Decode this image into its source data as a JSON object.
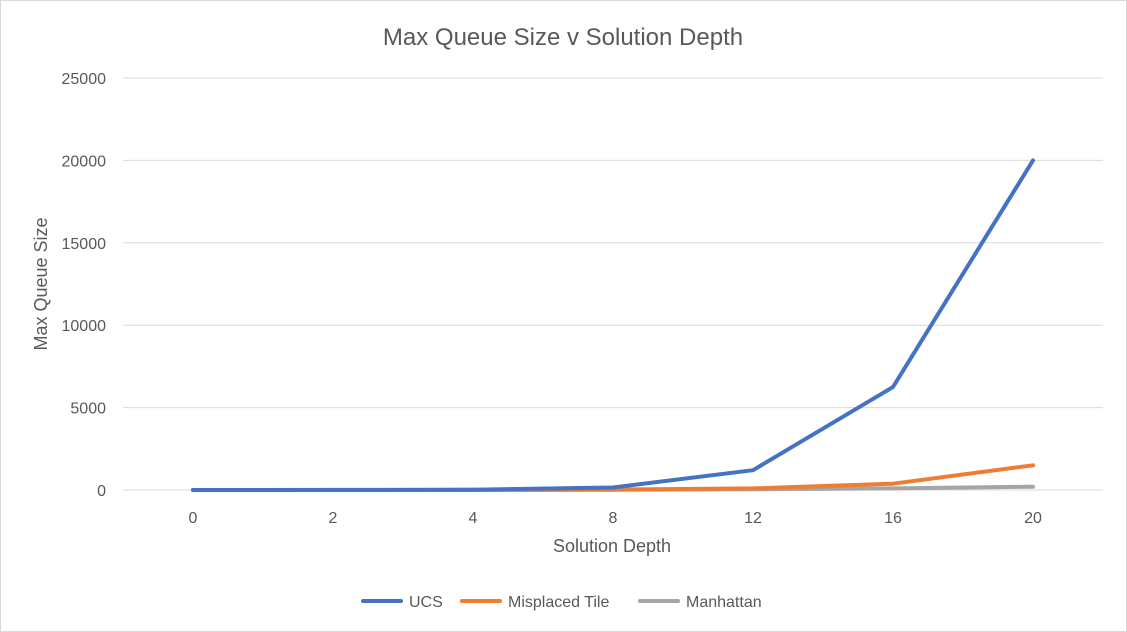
{
  "chart_data": {
    "type": "line",
    "title": "Max Queue Size v Solution Depth",
    "xlabel": "Solution Depth",
    "ylabel": "Max Queue Size",
    "categories": [
      "0",
      "2",
      "4",
      "8",
      "12",
      "16",
      "20"
    ],
    "ylim": [
      0,
      25000
    ],
    "yticks": [
      0,
      5000,
      10000,
      15000,
      20000,
      25000
    ],
    "grid": true,
    "legend_position": "bottom",
    "series": [
      {
        "name": "UCS",
        "color": "#4472C4",
        "values": [
          1,
          5,
          20,
          150,
          1200,
          6250,
          20000
        ]
      },
      {
        "name": "Misplaced Tile",
        "color": "#ED7D31",
        "values": [
          1,
          3,
          6,
          25,
          100,
          380,
          1500
        ]
      },
      {
        "name": "Manhattan",
        "color": "#A5A5A5",
        "values": [
          1,
          3,
          5,
          15,
          40,
          100,
          200
        ]
      }
    ]
  }
}
